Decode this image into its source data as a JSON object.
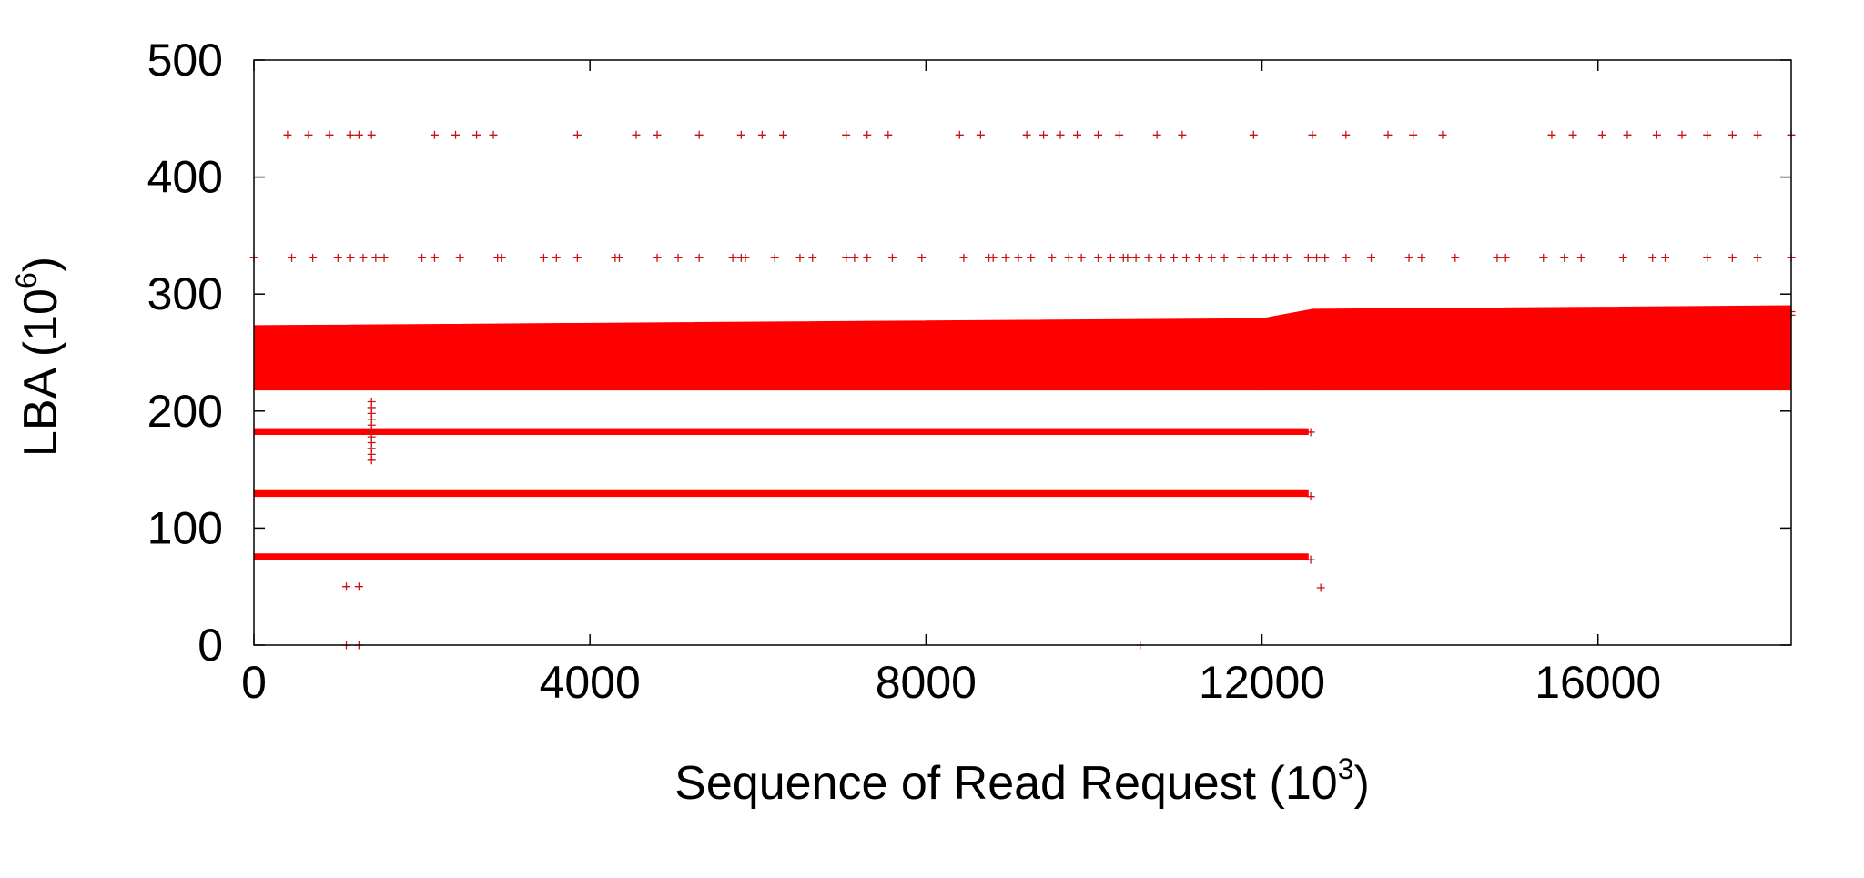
{
  "chart_data": {
    "type": "scatter",
    "xlabel": "Sequence of Read Request (10",
    "xlabel_exp": "3",
    "xlabel_tail": ")",
    "ylabel": "LBA (10",
    "ylabel_exp": "6",
    "ylabel_tail": ")",
    "xlim": [
      0,
      18300
    ],
    "ylim": [
      0,
      500
    ],
    "xticks": [
      0,
      4000,
      8000,
      12000,
      16000
    ],
    "xtick_labels": [
      "0",
      "4000",
      "8000",
      "12000",
      "16000"
    ],
    "yticks": [
      0,
      100,
      200,
      300,
      400,
      500
    ],
    "ytick_labels": [
      "0",
      "100",
      "200",
      "300",
      "400",
      "500"
    ],
    "grid": false,
    "legend": "none",
    "marker": "+",
    "color": "#ff0000",
    "dense_bands": [
      {
        "x": [
          0,
          12000
        ],
        "y_low": [
          218,
          218
        ],
        "y_high": [
          273,
          279
        ]
      },
      {
        "x": [
          12000,
          12600
        ],
        "y_low": [
          218,
          218
        ],
        "y_high": [
          279,
          287
        ]
      },
      {
        "x": [
          12600,
          18300
        ],
        "y_low": [
          218,
          218
        ],
        "y_high": [
          287,
          290
        ]
      },
      {
        "x": [
          0,
          12550
        ],
        "y_low": [
          180,
          180
        ],
        "y_high": [
          185,
          185
        ]
      },
      {
        "x": [
          0,
          12550
        ],
        "y_low": [
          127,
          127
        ],
        "y_high": [
          132,
          132
        ]
      },
      {
        "x": [
          0,
          12550
        ],
        "y_low": [
          73,
          73
        ],
        "y_high": [
          78,
          78
        ]
      }
    ],
    "sparse_points": {
      "y_436_x": [
        400,
        650,
        900,
        1150,
        1250,
        1400,
        2150,
        2400,
        2650,
        2850,
        3850,
        4550,
        4800,
        5300,
        5800,
        6050,
        6300,
        7050,
        7300,
        7550,
        8400,
        8650,
        9200,
        9400,
        9600,
        9800,
        10050,
        10300,
        10750,
        11050,
        11900,
        12600,
        13000,
        13500,
        13800,
        14150,
        15450,
        15700,
        16050,
        16350,
        16700,
        17000,
        17300,
        17600,
        17900,
        18300
      ],
      "y_331_x": [
        0,
        450,
        700,
        1000,
        1150,
        1300,
        1450,
        1550,
        2000,
        2150,
        2450,
        2900,
        2950,
        3450,
        3600,
        3850,
        4300,
        4350,
        4800,
        5050,
        5300,
        5700,
        5800,
        5850,
        6200,
        6500,
        6650,
        7050,
        7150,
        7300,
        7600,
        7950,
        8450,
        8750,
        8800,
        8950,
        9100,
        9250,
        9500,
        9700,
        9850,
        10050,
        10200,
        10350,
        10400,
        10500,
        10650,
        10800,
        10950,
        11100,
        11250,
        11400,
        11550,
        11750,
        11900,
        12050,
        12150,
        12300,
        12550,
        12650,
        12750,
        13000,
        13300,
        13750,
        13900,
        14300,
        14800,
        14900,
        15350,
        15600,
        15800,
        16300,
        16650,
        16800,
        17300,
        17600,
        17900,
        18300
      ],
      "extra": [
        {
          "x": 1100,
          "y": 50
        },
        {
          "x": 1250,
          "y": 50
        },
        {
          "x": 12700,
          "y": 49
        },
        {
          "x": 1100,
          "y": 0
        },
        {
          "x": 1250,
          "y": 0
        },
        {
          "x": 10550,
          "y": 0
        },
        {
          "x": 12580,
          "y": 73
        },
        {
          "x": 12580,
          "y": 127
        },
        {
          "x": 12580,
          "y": 182
        },
        {
          "x": 18300,
          "y": 285
        },
        {
          "x": 18300,
          "y": 282
        }
      ],
      "vertical_cluster": {
        "x": 1400,
        "y_from": 158,
        "y_to": 212,
        "step": 5
      }
    }
  }
}
